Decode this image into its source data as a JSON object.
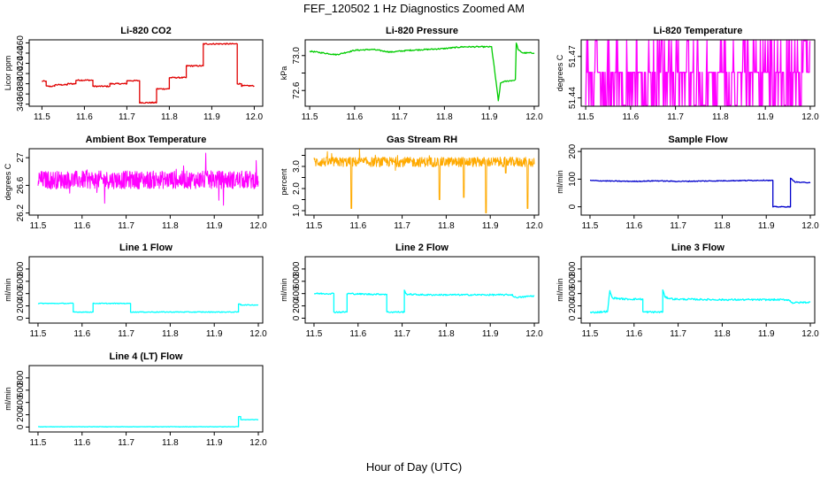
{
  "figure": {
    "title": "FEF_120502  1 Hz Diagnostics Zoomed AM",
    "xlabel": "Hour of Day (UTC)"
  },
  "chart_data": [
    {
      "type": "line",
      "title": "Li-820 CO2",
      "ylabel": "Licor ppm",
      "color": "#e00000",
      "xlim": [
        11.47,
        12.02
      ],
      "ylim": [
        336,
        466
      ],
      "xticks": [
        11.5,
        11.6,
        11.7,
        11.8,
        11.9,
        12.0
      ],
      "yticks": [
        340,
        360,
        380,
        400,
        420,
        440,
        460
      ],
      "x": [
        11.5,
        11.51,
        11.51,
        11.53,
        11.53,
        11.56,
        11.56,
        11.58,
        11.58,
        11.62,
        11.62,
        11.66,
        11.66,
        11.7,
        11.7,
        11.73,
        11.73,
        11.77,
        11.77,
        11.8,
        11.8,
        11.84,
        11.84,
        11.88,
        11.88,
        11.96,
        11.96,
        11.97,
        11.97,
        12.0
      ],
      "y": [
        385,
        385,
        375,
        375,
        378,
        378,
        380,
        380,
        387,
        387,
        375,
        375,
        380,
        380,
        386,
        386,
        343,
        343,
        370,
        370,
        392,
        392,
        415,
        415,
        458,
        458,
        380,
        380,
        376,
        376
      ],
      "noise": 1.2
    },
    {
      "type": "line",
      "title": "Li-820 Pressure",
      "ylabel": "kPa",
      "color": "#00cc00",
      "xlim": [
        11.49,
        12.01
      ],
      "ylim": [
        72.42,
        73.18
      ],
      "xticks": [
        11.5,
        11.6,
        11.7,
        11.8,
        11.9,
        12.0
      ],
      "yticks": [
        72.6,
        72.8,
        73.0
      ],
      "ytick_labels": [
        "72.6",
        "",
        "73.0"
      ],
      "x": [
        11.5,
        11.53,
        11.56,
        11.6,
        11.64,
        11.68,
        11.72,
        11.76,
        11.8,
        11.84,
        11.87,
        11.905,
        11.915,
        11.92,
        11.925,
        11.93,
        11.958,
        11.96,
        11.965,
        11.975,
        12.0
      ],
      "y": [
        73.05,
        73.03,
        73.01,
        73.06,
        73.07,
        73.04,
        73.06,
        73.07,
        73.08,
        73.1,
        73.1,
        73.1,
        72.7,
        72.48,
        72.68,
        72.7,
        72.72,
        73.14,
        73.06,
        73.03,
        73.03
      ],
      "noise": 0.007
    },
    {
      "type": "line",
      "title": "Li-820 Temperature",
      "ylabel": "degrees C",
      "color": "#ff00ff",
      "xlim": [
        11.49,
        12.01
      ],
      "ylim": [
        51.434,
        51.482
      ],
      "xticks": [
        11.5,
        11.6,
        11.7,
        11.8,
        11.9,
        12.0
      ],
      "yticks": [
        51.44,
        51.47
      ],
      "y_levels": [
        51.4347,
        51.4585,
        51.4812
      ],
      "style": "toggle"
    },
    {
      "type": "line",
      "title": "Ambient Box Temperature",
      "ylabel": "degrees C",
      "color": "#ff00ff",
      "xlim": [
        11.48,
        12.01
      ],
      "ylim": [
        26.17,
        27.13
      ],
      "xticks": [
        11.5,
        11.6,
        11.7,
        11.8,
        11.9,
        12.0
      ],
      "yticks": [
        26.2,
        26.6,
        27.0
      ],
      "base": 26.68,
      "noise": 0.13,
      "style": "noise"
    },
    {
      "type": "line",
      "title": "Gas Stream RH",
      "ylabel": "percent",
      "color": "#ffaa00",
      "xlim": [
        11.48,
        12.01
      ],
      "ylim": [
        0.8,
        3.8
      ],
      "xticks": [
        11.5,
        11.6,
        11.7,
        11.8,
        11.9,
        12.0
      ],
      "yticks": [
        1.0,
        1.5,
        2.0,
        2.5,
        3.0,
        3.5
      ],
      "ytick_labels": [
        "1.0",
        "",
        "2.0",
        "",
        "3.0",
        ""
      ],
      "base": 3.2,
      "noise": 0.22,
      "dips": [
        [
          11.585,
          1.1
        ],
        [
          11.785,
          1.5
        ],
        [
          11.84,
          1.6
        ],
        [
          11.89,
          0.9
        ],
        [
          11.935,
          2.7
        ],
        [
          11.985,
          1.1
        ]
      ],
      "style": "noise"
    },
    {
      "type": "line",
      "title": "Sample Flow",
      "ylabel": "ml/min",
      "color": "#0000cc",
      "xlim": [
        11.48,
        12.01
      ],
      "ylim": [
        -30,
        210
      ],
      "xticks": [
        11.5,
        11.6,
        11.7,
        11.8,
        11.9,
        12.0
      ],
      "yticks": [
        0,
        100,
        200
      ],
      "x": [
        11.5,
        11.55,
        11.6,
        11.65,
        11.7,
        11.75,
        11.8,
        11.85,
        11.9,
        11.91,
        11.915,
        11.915,
        11.955,
        11.955,
        11.965,
        11.98,
        12.0
      ],
      "y": [
        95,
        93,
        92,
        94,
        92,
        93,
        94,
        95,
        96,
        95,
        95,
        0,
        0,
        103,
        90,
        88,
        88
      ],
      "noise": 1.5
    },
    {
      "type": "line",
      "title": "Line 1 Flow",
      "ylabel": "ml/min",
      "color": "#00ffff",
      "xlim": [
        11.48,
        12.01
      ],
      "ylim": [
        -80,
        1000
      ],
      "xticks": [
        11.5,
        11.6,
        11.7,
        11.8,
        11.9,
        12.0
      ],
      "yticks": [
        0,
        200,
        400,
        600,
        800
      ],
      "x": [
        11.5,
        11.58,
        11.58,
        11.625,
        11.625,
        11.71,
        11.71,
        11.955,
        11.955,
        11.96,
        11.96,
        12.0
      ],
      "y": [
        240,
        240,
        100,
        100,
        240,
        240,
        100,
        100,
        230,
        230,
        215,
        215
      ],
      "noise": 6
    },
    {
      "type": "line",
      "title": "Line 2 Flow",
      "ylabel": "ml/min",
      "color": "#00ffff",
      "xlim": [
        11.48,
        12.01
      ],
      "ylim": [
        -80,
        1000
      ],
      "xticks": [
        11.5,
        11.6,
        11.7,
        11.8,
        11.9,
        12.0
      ],
      "yticks": [
        0,
        200,
        400,
        600,
        800
      ],
      "x": [
        11.5,
        11.545,
        11.545,
        11.575,
        11.575,
        11.62,
        11.66,
        11.665,
        11.665,
        11.705,
        11.705,
        11.71,
        11.75,
        11.85,
        11.95,
        11.955,
        11.97,
        11.99,
        12.0
      ],
      "y": [
        400,
        400,
        100,
        100,
        400,
        390,
        390,
        390,
        100,
        100,
        450,
        390,
        380,
        380,
        380,
        340,
        340,
        360,
        360
      ],
      "noise": 12
    },
    {
      "type": "line",
      "title": "Line 3 Flow",
      "ylabel": "ml/min",
      "color": "#00ffff",
      "xlim": [
        11.48,
        12.01
      ],
      "ylim": [
        -80,
        1000
      ],
      "xticks": [
        11.5,
        11.6,
        11.7,
        11.8,
        11.9,
        12.0
      ],
      "yticks": [
        0,
        200,
        400,
        600,
        800
      ],
      "x": [
        11.5,
        11.54,
        11.54,
        11.545,
        11.55,
        11.58,
        11.62,
        11.62,
        11.665,
        11.665,
        11.67,
        11.69,
        11.8,
        11.95,
        11.96,
        12.0
      ],
      "y": [
        90,
        110,
        110,
        450,
        330,
        310,
        310,
        100,
        100,
        470,
        340,
        310,
        300,
        300,
        250,
        260
      ],
      "noise": 14
    },
    {
      "type": "line",
      "title": "Line 4 (LT) Flow",
      "ylabel": "ml/min",
      "color": "#00ffff",
      "xlim": [
        11.48,
        12.01
      ],
      "ylim": [
        -80,
        1000
      ],
      "xticks": [
        11.5,
        11.6,
        11.7,
        11.8,
        11.9,
        12.0
      ],
      "yticks": [
        0,
        200,
        400,
        600,
        800
      ],
      "x": [
        11.5,
        11.955,
        11.955,
        11.96,
        11.96,
        12.0
      ],
      "y": [
        5,
        5,
        170,
        170,
        120,
        120
      ],
      "noise": 3
    }
  ]
}
